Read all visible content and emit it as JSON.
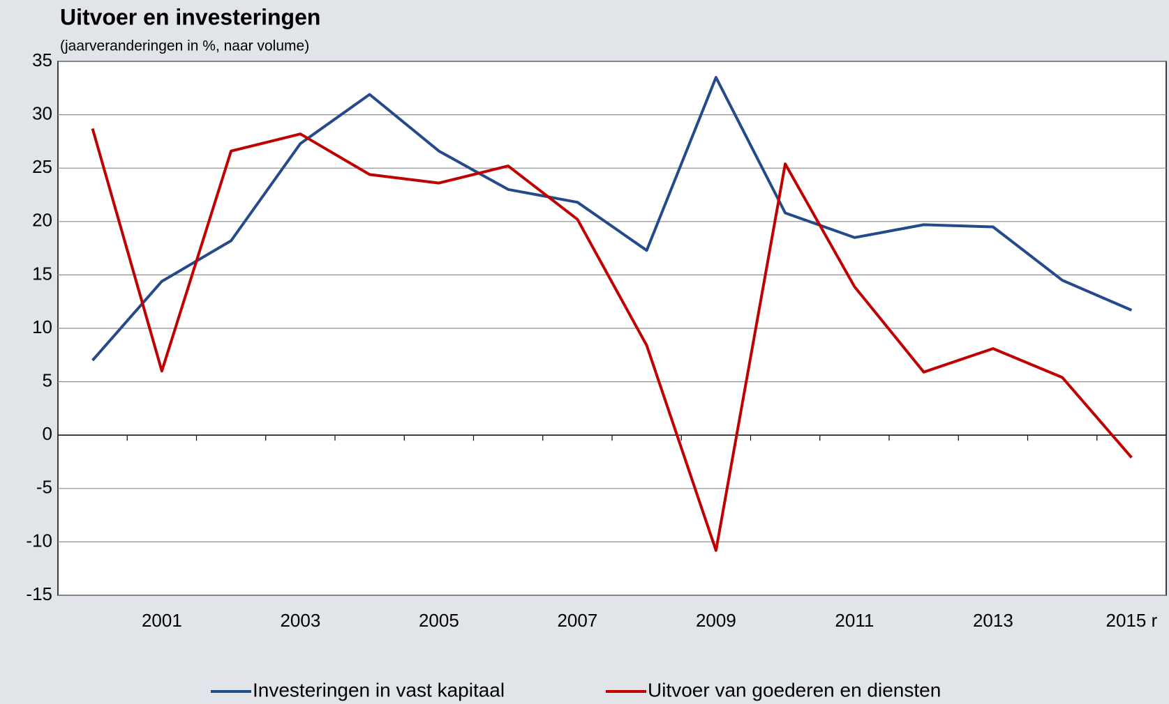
{
  "chart_data": {
    "type": "line",
    "title": "Uitvoer en investeringen",
    "subtitle": "(jaarveranderingen in %, naar volume)",
    "categories": [
      null,
      "2001",
      null,
      "2003",
      null,
      "2005",
      null,
      "2007",
      null,
      "2009",
      null,
      "2011",
      null,
      "2013",
      null,
      "2015 r"
    ],
    "series": [
      {
        "name": "Investeringen in vast kapitaal",
        "color": "#254a8c",
        "values": [
          7.0,
          14.4,
          18.2,
          27.3,
          31.9,
          26.6,
          23.0,
          21.8,
          17.3,
          33.5,
          20.8,
          18.5,
          19.7,
          19.5,
          14.5,
          11.7
        ]
      },
      {
        "name": "Uitvoer van goederen en diensten",
        "color": "#c00000",
        "values": [
          28.7,
          6.0,
          26.6,
          28.2,
          24.4,
          23.6,
          25.2,
          20.2,
          8.4,
          -10.8,
          25.4,
          13.9,
          5.9,
          8.1,
          5.4,
          -2.1
        ]
      }
    ],
    "ylim": [
      -15,
      35
    ],
    "yticks": [
      -15,
      -10,
      -5,
      0,
      5,
      10,
      15,
      20,
      25,
      30,
      35
    ],
    "grid": true,
    "legend": "bottom"
  }
}
